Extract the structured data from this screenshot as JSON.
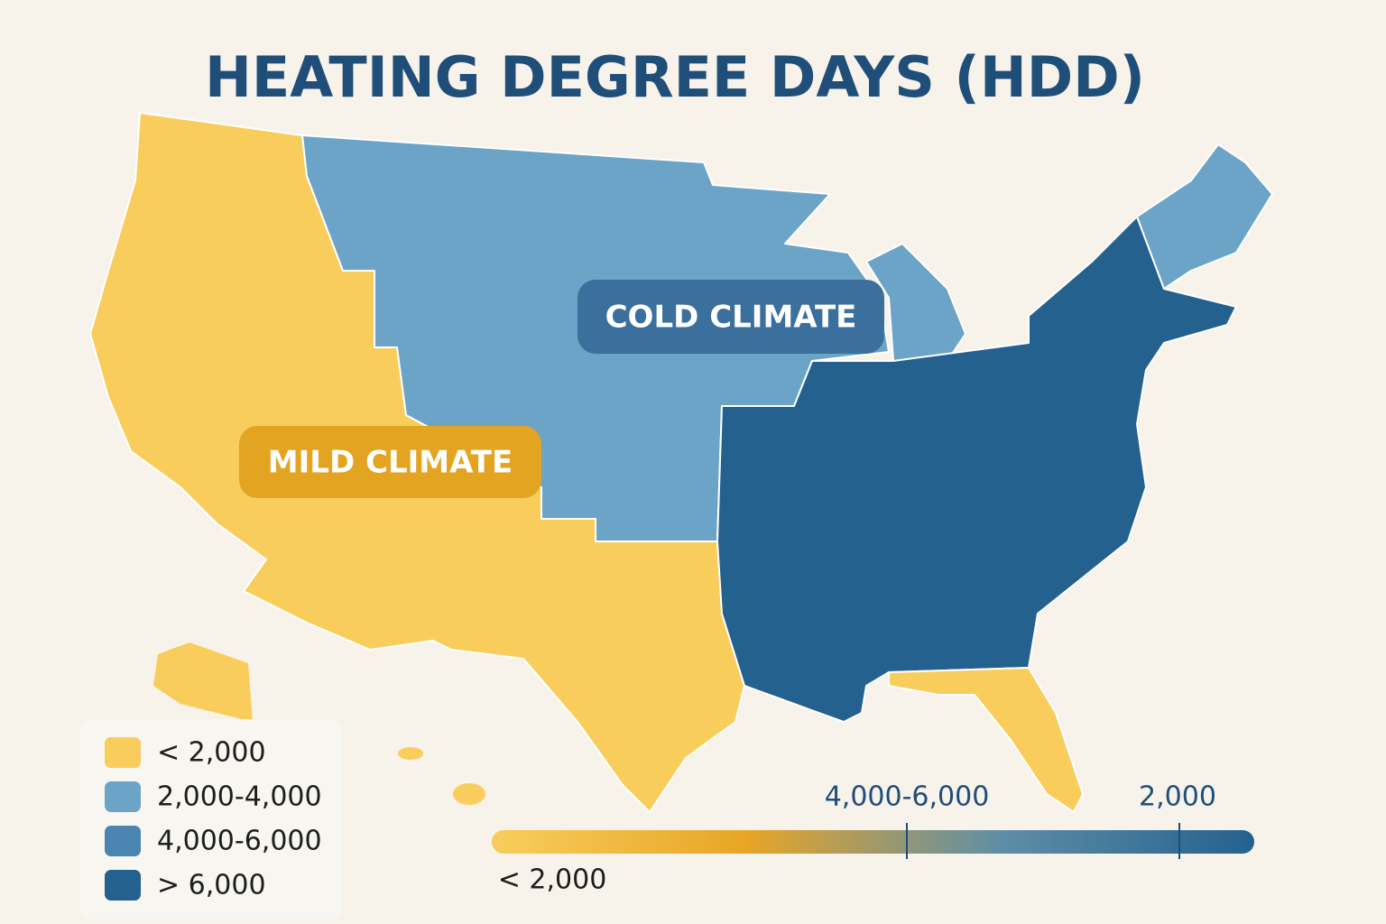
{
  "title": "HEATING DEGREE DAYS (HDD)",
  "annotations": [
    {
      "text": "COLD CLIMATE",
      "color": "#3b6f9c"
    },
    {
      "text": "MILD CLIMATE",
      "color": "#e3a422"
    }
  ],
  "legend": {
    "items": [
      {
        "label": "< 2,000",
        "color": "#f8cd5c"
      },
      {
        "label": "2,000-4,000",
        "color": "#6ca4c7"
      },
      {
        "label": "4,000-6,000",
        "color": "#4a84b1"
      },
      {
        "label": "> 6,000",
        "color": "#24618f"
      }
    ]
  },
  "color_bar": {
    "colors": [
      "#f8cd5c",
      "#e8a526",
      "#5f8ea6",
      "#24618f"
    ],
    "labels": [
      "4,000-6,000",
      "2,000",
      "< 2,000"
    ]
  }
}
